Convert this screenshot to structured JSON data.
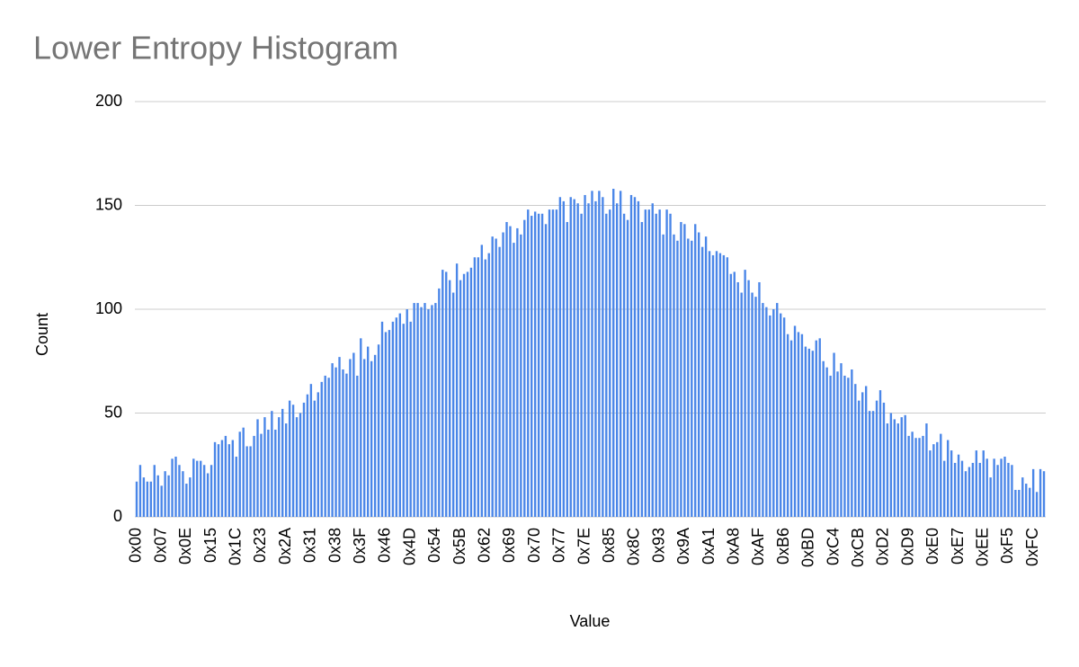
{
  "chart_data": {
    "type": "bar",
    "title": "Lower Entropy Histogram",
    "x_label": "Value",
    "y_label": "Count",
    "categories": [
      "0x00",
      null,
      null,
      null,
      null,
      null,
      null,
      "0x07",
      null,
      null,
      null,
      null,
      null,
      null,
      "0x0E",
      null,
      null,
      null,
      null,
      null,
      null,
      "0x15",
      null,
      null,
      null,
      null,
      null,
      null,
      "0x1C",
      null,
      null,
      null,
      null,
      null,
      null,
      "0x23",
      null,
      null,
      null,
      null,
      null,
      null,
      "0x2A",
      null,
      null,
      null,
      null,
      null,
      null,
      "0x31",
      null,
      null,
      null,
      null,
      null,
      null,
      "0x38",
      null,
      null,
      null,
      null,
      null,
      null,
      "0x3F",
      null,
      null,
      null,
      null,
      null,
      null,
      "0x46",
      null,
      null,
      null,
      null,
      null,
      null,
      "0x4D",
      null,
      null,
      null,
      null,
      null,
      null,
      "0x54",
      null,
      null,
      null,
      null,
      null,
      null,
      "0x5B",
      null,
      null,
      null,
      null,
      null,
      null,
      "0x62",
      null,
      null,
      null,
      null,
      null,
      null,
      "0x69",
      null,
      null,
      null,
      null,
      null,
      null,
      "0x70",
      null,
      null,
      null,
      null,
      null,
      null,
      "0x77",
      null,
      null,
      null,
      null,
      null,
      null,
      "0x7E",
      null,
      null,
      null,
      null,
      null,
      null,
      "0x85",
      null,
      null,
      null,
      null,
      null,
      null,
      "0x8C",
      null,
      null,
      null,
      null,
      null,
      null,
      "0x93",
      null,
      null,
      null,
      null,
      null,
      null,
      "0x9A",
      null,
      null,
      null,
      null,
      null,
      null,
      "0xA1",
      null,
      null,
      null,
      null,
      null,
      null,
      "0xA8",
      null,
      null,
      null,
      null,
      null,
      null,
      "0xAF",
      null,
      null,
      null,
      null,
      null,
      null,
      "0xB6",
      null,
      null,
      null,
      null,
      null,
      null,
      "0xBD",
      null,
      null,
      null,
      null,
      null,
      null,
      "0xC4",
      null,
      null,
      null,
      null,
      null,
      null,
      "0xCB",
      null,
      null,
      null,
      null,
      null,
      null,
      "0xD2",
      null,
      null,
      null,
      null,
      null,
      null,
      "0xD9",
      null,
      null,
      null,
      null,
      null,
      null,
      "0xE0",
      null,
      null,
      null,
      null,
      null,
      null,
      "0xE7",
      null,
      null,
      null,
      null,
      null,
      null,
      "0xEE",
      null,
      null,
      null,
      null,
      null,
      null,
      "0xF5",
      null,
      null,
      null,
      null,
      null,
      null,
      "0xFC",
      null,
      null,
      null
    ],
    "values": [
      17,
      25,
      19,
      17,
      17,
      25,
      20,
      15,
      22,
      20,
      28,
      29,
      25,
      22,
      16,
      19,
      28,
      27,
      27,
      25,
      21,
      25,
      36,
      35,
      37,
      39,
      35,
      37,
      29,
      41,
      43,
      34,
      34,
      39,
      47,
      40,
      48,
      42,
      51,
      42,
      48,
      52,
      45,
      56,
      54,
      48,
      50,
      55,
      59,
      64,
      56,
      60,
      65,
      68,
      67,
      74,
      72,
      77,
      71,
      69,
      76,
      79,
      68,
      86,
      76,
      82,
      75,
      78,
      83,
      94,
      89,
      90,
      94,
      96,
      98,
      93,
      100,
      94,
      103,
      103,
      101,
      103,
      100,
      102,
      103,
      110,
      119,
      118,
      114,
      108,
      122,
      114,
      117,
      118,
      120,
      125,
      125,
      131,
      124,
      127,
      135,
      134,
      130,
      137,
      142,
      140,
      132,
      139,
      136,
      143,
      148,
      145,
      147,
      146,
      146,
      141,
      148,
      148,
      148,
      154,
      152,
      142,
      154,
      153,
      151,
      146,
      155,
      151,
      157,
      152,
      157,
      154,
      146,
      148,
      158,
      151,
      157,
      146,
      143,
      155,
      154,
      152,
      142,
      148,
      148,
      151,
      146,
      148,
      136,
      148,
      146,
      136,
      133,
      142,
      141,
      134,
      133,
      141,
      137,
      130,
      135,
      128,
      126,
      128,
      127,
      126,
      125,
      117,
      118,
      113,
      108,
      119,
      114,
      108,
      106,
      113,
      103,
      101,
      97,
      100,
      103,
      98,
      96,
      88,
      85,
      92,
      89,
      88,
      82,
      81,
      80,
      85,
      86,
      75,
      72,
      68,
      79,
      70,
      74,
      68,
      67,
      71,
      64,
      56,
      60,
      63,
      51,
      51,
      56,
      61,
      55,
      45,
      50,
      47,
      45,
      48,
      49,
      39,
      41,
      38,
      38,
      39,
      45,
      32,
      35,
      36,
      40,
      27,
      37,
      32,
      26,
      30,
      27,
      22,
      24,
      26,
      32,
      26,
      32,
      28,
      19,
      28,
      25,
      28,
      29,
      26,
      25,
      13,
      13,
      19,
      16,
      14,
      23,
      12,
      23,
      22
    ],
    "color": "#4a86e8",
    "ylim": [
      0,
      200
    ],
    "yticks": [
      0,
      50,
      100,
      150,
      200
    ],
    "grid": true
  }
}
